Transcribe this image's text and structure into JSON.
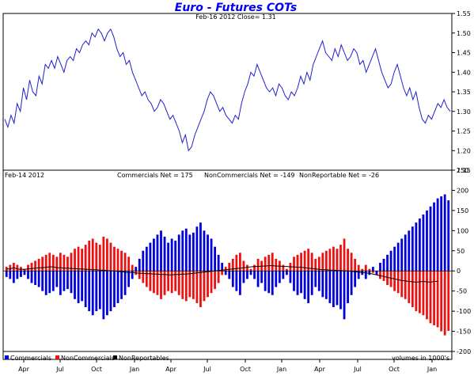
{
  "chart_data": {
    "title": "Euro - Futures COTs",
    "colors": {
      "price_line": "#2020d0",
      "commercials": "#0000dd",
      "noncommercials": "#ee1111",
      "nonreportables": "#000000"
    },
    "x_labels": [
      "Apr",
      "Jul",
      "Oct",
      "Jan",
      "Apr",
      "Jul",
      "Oct",
      "Jan",
      "Apr",
      "Jul",
      "Oct",
      "Jan"
    ],
    "price_panel": {
      "type": "line",
      "subtitle": "Feb-16 2012    Close= 1.31",
      "ylim": [
        1.15,
        1.55
      ],
      "yticks": [
        1.15,
        1.2,
        1.25,
        1.3,
        1.35,
        1.4,
        1.45,
        1.5,
        1.55
      ],
      "series": [
        {
          "name": "Close",
          "values": [
            1.28,
            1.26,
            1.29,
            1.27,
            1.32,
            1.3,
            1.36,
            1.33,
            1.38,
            1.35,
            1.34,
            1.39,
            1.37,
            1.42,
            1.41,
            1.43,
            1.41,
            1.44,
            1.42,
            1.4,
            1.43,
            1.44,
            1.43,
            1.46,
            1.45,
            1.47,
            1.48,
            1.47,
            1.5,
            1.49,
            1.51,
            1.5,
            1.48,
            1.5,
            1.51,
            1.49,
            1.46,
            1.44,
            1.45,
            1.42,
            1.43,
            1.4,
            1.38,
            1.36,
            1.34,
            1.35,
            1.33,
            1.32,
            1.3,
            1.31,
            1.33,
            1.32,
            1.3,
            1.28,
            1.29,
            1.27,
            1.25,
            1.22,
            1.24,
            1.2,
            1.21,
            1.24,
            1.26,
            1.28,
            1.3,
            1.33,
            1.35,
            1.34,
            1.32,
            1.3,
            1.31,
            1.29,
            1.28,
            1.27,
            1.29,
            1.28,
            1.32,
            1.35,
            1.37,
            1.4,
            1.39,
            1.42,
            1.4,
            1.38,
            1.36,
            1.35,
            1.36,
            1.34,
            1.37,
            1.36,
            1.34,
            1.33,
            1.35,
            1.34,
            1.36,
            1.39,
            1.37,
            1.4,
            1.38,
            1.42,
            1.44,
            1.46,
            1.48,
            1.45,
            1.44,
            1.43,
            1.46,
            1.44,
            1.47,
            1.45,
            1.43,
            1.44,
            1.46,
            1.45,
            1.42,
            1.43,
            1.4,
            1.42,
            1.44,
            1.46,
            1.43,
            1.4,
            1.38,
            1.36,
            1.37,
            1.4,
            1.42,
            1.39,
            1.36,
            1.34,
            1.36,
            1.33,
            1.35,
            1.31,
            1.28,
            1.27,
            1.29,
            1.28,
            1.3,
            1.32,
            1.31,
            1.33,
            1.31,
            1.3
          ]
        }
      ]
    },
    "cot_panel": {
      "type": "bar",
      "date_label": "Feb-14  2012",
      "commercials_net_label": "Commercials Net = 175",
      "noncommercials_net_label": "NonCommercials Net = -149",
      "nonreportable_net_label": "NonReportable Net = -26",
      "ylim": [
        -200,
        250
      ],
      "yticks": [
        -200,
        -150,
        -100,
        -50,
        0,
        50,
        100,
        150,
        200,
        250
      ],
      "units_note": "volumes in 1000's",
      "legend": [
        "Commercials",
        "NonCommercials",
        "NonReportables"
      ],
      "series": [
        {
          "name": "Commercials",
          "values": [
            -15,
            -20,
            -30,
            -20,
            -15,
            -10,
            -20,
            -30,
            -35,
            -40,
            -50,
            -60,
            -55,
            -50,
            -40,
            -60,
            -50,
            -45,
            -55,
            -70,
            -80,
            -75,
            -90,
            -100,
            -110,
            -100,
            -95,
            -120,
            -110,
            -100,
            -90,
            -80,
            -70,
            -60,
            -40,
            -20,
            10,
            30,
            50,
            60,
            70,
            80,
            90,
            100,
            85,
            70,
            80,
            75,
            90,
            100,
            105,
            90,
            95,
            110,
            120,
            100,
            90,
            80,
            60,
            40,
            20,
            -10,
            -20,
            -40,
            -50,
            -60,
            -30,
            -20,
            -10,
            -20,
            -40,
            -30,
            -50,
            -55,
            -60,
            -40,
            -30,
            -20,
            -10,
            -30,
            -50,
            -60,
            -55,
            -70,
            -80,
            -60,
            -40,
            -50,
            -65,
            -70,
            -80,
            -90,
            -85,
            -95,
            -120,
            -80,
            -60,
            -40,
            -20,
            -10,
            -20,
            -10,
            10,
            -10,
            20,
            30,
            40,
            50,
            60,
            70,
            80,
            90,
            100,
            110,
            120,
            130,
            140,
            150,
            160,
            170,
            180,
            185,
            190,
            175
          ],
          "color": "#0000dd"
        },
        {
          "name": "NonCommercials",
          "values": [
            10,
            15,
            20,
            15,
            10,
            5,
            15,
            20,
            25,
            30,
            35,
            40,
            45,
            40,
            35,
            45,
            40,
            35,
            45,
            55,
            60,
            55,
            65,
            75,
            80,
            70,
            65,
            85,
            80,
            70,
            60,
            55,
            50,
            45,
            35,
            15,
            -10,
            -20,
            -30,
            -40,
            -50,
            -55,
            -60,
            -70,
            -60,
            -50,
            -55,
            -50,
            -60,
            -70,
            -75,
            -65,
            -70,
            -80,
            -90,
            -75,
            -65,
            -55,
            -45,
            -30,
            -10,
            10,
            20,
            30,
            40,
            45,
            25,
            15,
            5,
            15,
            30,
            25,
            35,
            40,
            45,
            30,
            25,
            15,
            5,
            20,
            35,
            40,
            45,
            50,
            55,
            45,
            30,
            35,
            45,
            50,
            55,
            60,
            55,
            65,
            80,
            55,
            45,
            30,
            15,
            5,
            15,
            5,
            -5,
            -10,
            -20,
            -25,
            -35,
            -40,
            -50,
            -55,
            -65,
            -70,
            -80,
            -90,
            -100,
            -105,
            -110,
            -120,
            -130,
            -135,
            -140,
            -150,
            -160,
            -149
          ],
          "color": "#ee1111"
        },
        {
          "name": "NonReportables",
          "values": [
            5,
            5,
            8,
            5,
            4,
            4,
            5,
            6,
            7,
            8,
            8,
            9,
            10,
            10,
            8,
            8,
            7,
            7,
            6,
            6,
            5,
            5,
            4,
            4,
            3,
            3,
            2,
            2,
            1,
            0,
            0,
            -1,
            -2,
            -3,
            -4,
            -4,
            -5,
            -6,
            -6,
            -7,
            -7,
            -8,
            -8,
            -9,
            -9,
            -10,
            -10,
            -9,
            -9,
            -8,
            -8,
            -7,
            -6,
            -5,
            -4,
            -3,
            -2,
            -1,
            0,
            1,
            2,
            3,
            4,
            5,
            6,
            7,
            8,
            9,
            10,
            11,
            11,
            12,
            12,
            13,
            13,
            12,
            12,
            11,
            11,
            10,
            10,
            9,
            9,
            8,
            7,
            6,
            5,
            4,
            3,
            3,
            2,
            2,
            1,
            1,
            0,
            0,
            -1,
            -2,
            -3,
            -4,
            -5,
            -6,
            -8,
            -10,
            -12,
            -14,
            -16,
            -18,
            -20,
            -22,
            -24,
            -25,
            -26,
            -27,
            -28,
            -27,
            -26,
            -27,
            -28,
            -26,
            -26
          ],
          "color": "#000000"
        }
      ]
    }
  }
}
